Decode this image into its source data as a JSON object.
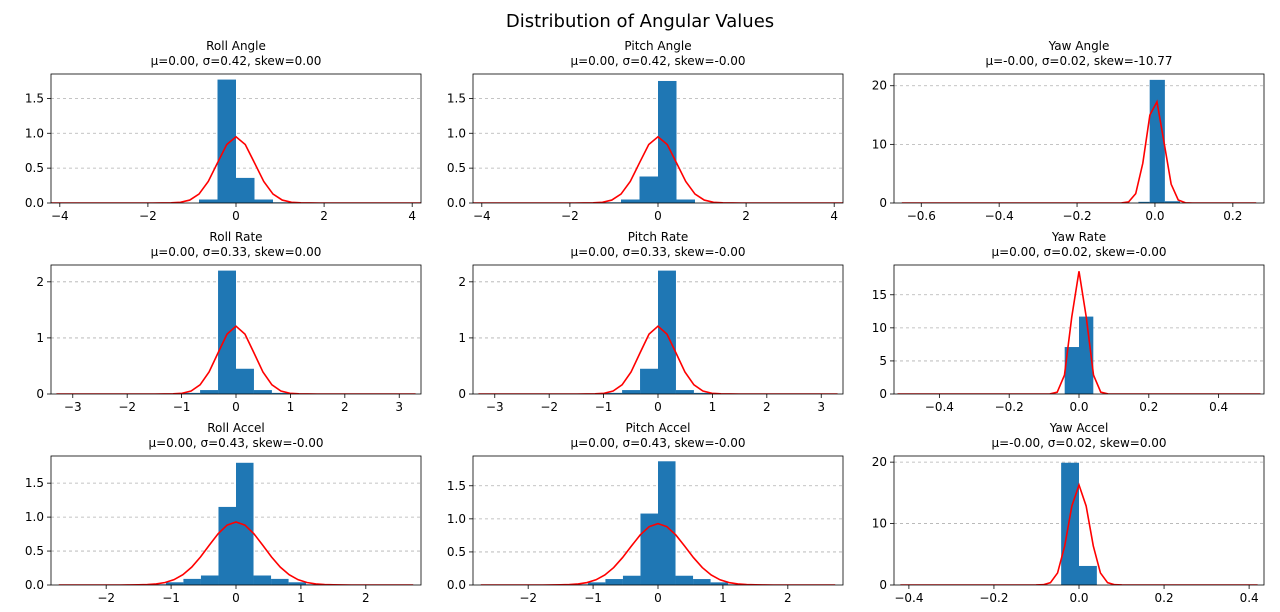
{
  "figure": {
    "title": "Distribution of Angular Values"
  },
  "colors": {
    "bar": "#1f77b4",
    "fit_curve": "#ff0000",
    "grid": "#b0b0b0",
    "axes": "#000000"
  },
  "chart_data": [
    {
      "type": "bar",
      "title": "Roll Angle",
      "subtitle": "μ=0.00, σ=0.42, skew=0.00",
      "xlim": [
        -4.2,
        4.2
      ],
      "ylim": [
        0,
        1.85
      ],
      "grid": "y",
      "legend": "none",
      "xticks": [
        -4,
        -2,
        0,
        2,
        4
      ],
      "xtick_labels": [
        "−4",
        "−2",
        "0",
        "2",
        "4"
      ],
      "yticks": [
        0,
        0.5,
        1,
        1.5
      ],
      "ytick_labels": [
        "0.0",
        "0.5",
        "1.0",
        "1.5"
      ],
      "bins": [
        {
          "x0": -0.84,
          "x1": -0.42,
          "y": 0.05
        },
        {
          "x0": -0.42,
          "x1": 0.0,
          "y": 1.77
        },
        {
          "x0": 0.0,
          "x1": 0.42,
          "y": 0.36
        },
        {
          "x0": 0.42,
          "x1": 0.84,
          "y": 0.05
        },
        {
          "x0": 0.84,
          "x1": 1.26,
          "y": 0.01
        }
      ],
      "curve": {
        "type": "normal",
        "mu": 0.0,
        "sigma": 0.42,
        "x_range": [
          -4.2,
          4.2
        ],
        "samples": 41
      }
    },
    {
      "type": "bar",
      "title": "Pitch Angle",
      "subtitle": "μ=0.00, σ=0.42, skew=-0.00",
      "xlim": [
        -4.2,
        4.2
      ],
      "ylim": [
        0,
        1.85
      ],
      "grid": "y",
      "legend": "none",
      "xticks": [
        -4,
        -2,
        0,
        2,
        4
      ],
      "xtick_labels": [
        "−4",
        "−2",
        "0",
        "2",
        "4"
      ],
      "yticks": [
        0,
        0.5,
        1,
        1.5
      ],
      "ytick_labels": [
        "0.0",
        "0.5",
        "1.0",
        "1.5"
      ],
      "bins": [
        {
          "x0": -1.26,
          "x1": -0.84,
          "y": 0.01
        },
        {
          "x0": -0.84,
          "x1": -0.42,
          "y": 0.05
        },
        {
          "x0": -0.42,
          "x1": 0.0,
          "y": 0.38
        },
        {
          "x0": 0.0,
          "x1": 0.42,
          "y": 1.75
        },
        {
          "x0": 0.42,
          "x1": 0.84,
          "y": 0.05
        }
      ],
      "curve": {
        "type": "normal",
        "mu": 0.0,
        "sigma": 0.42,
        "x_range": [
          -4.2,
          4.2
        ],
        "samples": 41
      }
    },
    {
      "type": "bar",
      "title": "Yaw Angle",
      "subtitle": "μ=-0.00, σ=0.02, skew=-10.77",
      "xlim": [
        -0.67,
        0.28
      ],
      "ylim": [
        0,
        22
      ],
      "grid": "y",
      "legend": "none",
      "xticks": [
        -0.6,
        -0.4,
        -0.2,
        0.0,
        0.2
      ],
      "xtick_labels": [
        "−0.6",
        "−0.4",
        "−0.2",
        "0.0",
        "0.2"
      ],
      "yticks": [
        0,
        10,
        20
      ],
      "ytick_labels": [
        "0",
        "10",
        "20"
      ],
      "bins": [
        {
          "x0": -0.0425,
          "x1": -0.0135,
          "y": 0.2
        },
        {
          "x0": -0.0135,
          "x1": 0.0255,
          "y": 21.0
        },
        {
          "x0": 0.0255,
          "x1": 0.0645,
          "y": 0.3
        }
      ],
      "curve": {
        "type": "normal",
        "mu": 0.0,
        "sigma": 0.0225,
        "x_range": [
          -0.65,
          0.26
        ],
        "samples": 51
      }
    },
    {
      "type": "bar",
      "title": "Roll Rate",
      "subtitle": "μ=0.00, σ=0.33, skew=0.00",
      "xlim": [
        -3.4,
        3.4
      ],
      "ylim": [
        0,
        2.3
      ],
      "grid": "y",
      "legend": "none",
      "xticks": [
        -3,
        -2,
        -1,
        0,
        1,
        2,
        3
      ],
      "xtick_labels": [
        "−3",
        "−2",
        "−1",
        "0",
        "1",
        "2",
        "3"
      ],
      "yticks": [
        0,
        1,
        2
      ],
      "ytick_labels": [
        "0",
        "1",
        "2"
      ],
      "bins": [
        {
          "x0": -1.0,
          "x1": -0.66,
          "y": 0.02
        },
        {
          "x0": -0.66,
          "x1": -0.33,
          "y": 0.07
        },
        {
          "x0": -0.33,
          "x1": 0.0,
          "y": 2.2
        },
        {
          "x0": 0.0,
          "x1": 0.33,
          "y": 0.45
        },
        {
          "x0": 0.33,
          "x1": 0.66,
          "y": 0.07
        },
        {
          "x0": 0.66,
          "x1": 1.0,
          "y": 0.02
        }
      ],
      "curve": {
        "type": "normal",
        "mu": 0.0,
        "sigma": 0.33,
        "x_range": [
          -3.3,
          3.3
        ],
        "samples": 41
      }
    },
    {
      "type": "bar",
      "title": "Pitch Rate",
      "subtitle": "μ=0.00, σ=0.33, skew=-0.00",
      "xlim": [
        -3.4,
        3.4
      ],
      "ylim": [
        0,
        2.3
      ],
      "grid": "y",
      "legend": "none",
      "xticks": [
        -3,
        -2,
        -1,
        0,
        1,
        2,
        3
      ],
      "xtick_labels": [
        "−3",
        "−2",
        "−1",
        "0",
        "1",
        "2",
        "3"
      ],
      "yticks": [
        0,
        1,
        2
      ],
      "ytick_labels": [
        "0",
        "1",
        "2"
      ],
      "bins": [
        {
          "x0": -1.0,
          "x1": -0.66,
          "y": 0.02
        },
        {
          "x0": -0.66,
          "x1": -0.33,
          "y": 0.07
        },
        {
          "x0": -0.33,
          "x1": 0.0,
          "y": 0.45
        },
        {
          "x0": 0.0,
          "x1": 0.33,
          "y": 2.2
        },
        {
          "x0": 0.33,
          "x1": 0.66,
          "y": 0.07
        },
        {
          "x0": 0.66,
          "x1": 1.0,
          "y": 0.02
        }
      ],
      "curve": {
        "type": "normal",
        "mu": 0.0,
        "sigma": 0.33,
        "x_range": [
          -3.3,
          3.3
        ],
        "samples": 41
      }
    },
    {
      "type": "bar",
      "title": "Yaw Rate",
      "subtitle": "μ=0.00, σ=0.02, skew=-0.00",
      "xlim": [
        -0.53,
        0.53
      ],
      "ylim": [
        0,
        19.5
      ],
      "grid": "y",
      "legend": "none",
      "xticks": [
        -0.4,
        -0.2,
        0.0,
        0.2,
        0.4
      ],
      "xtick_labels": [
        "−0.4",
        "−0.2",
        "0.0",
        "0.2",
        "0.4"
      ],
      "yticks": [
        0,
        5,
        10,
        15
      ],
      "ytick_labels": [
        "0",
        "5",
        "10",
        "15"
      ],
      "bins": [
        {
          "x0": -0.041,
          "x1": 0.0,
          "y": 7.1
        },
        {
          "x0": 0.0,
          "x1": 0.041,
          "y": 11.7
        }
      ],
      "curve": {
        "type": "normal",
        "mu": 0.0,
        "sigma": 0.0215,
        "x_range": [
          -0.52,
          0.52
        ],
        "samples": 51
      }
    },
    {
      "type": "bar",
      "title": "Roll Accel",
      "subtitle": "μ=0.00, σ=0.43, skew=-0.00",
      "xlim": [
        -2.85,
        2.85
      ],
      "ylim": [
        0,
        1.9
      ],
      "grid": "y",
      "legend": "none",
      "xticks": [
        -2,
        -1,
        0,
        1,
        2
      ],
      "xtick_labels": [
        "−2",
        "−1",
        "0",
        "1",
        "2"
      ],
      "yticks": [
        0,
        0.5,
        1,
        1.5
      ],
      "ytick_labels": [
        "0.0",
        "0.5",
        "1.0",
        "1.5"
      ],
      "bins": [
        {
          "x0": -1.35,
          "x1": -1.08,
          "y": 0.01
        },
        {
          "x0": -1.08,
          "x1": -0.81,
          "y": 0.04
        },
        {
          "x0": -0.81,
          "x1": -0.54,
          "y": 0.09
        },
        {
          "x0": -0.54,
          "x1": -0.27,
          "y": 0.14
        },
        {
          "x0": -0.27,
          "x1": 0.0,
          "y": 1.15
        },
        {
          "x0": 0.0,
          "x1": 0.27,
          "y": 1.8
        },
        {
          "x0": 0.27,
          "x1": 0.54,
          "y": 0.14
        },
        {
          "x0": 0.54,
          "x1": 0.81,
          "y": 0.09
        },
        {
          "x0": 0.81,
          "x1": 1.08,
          "y": 0.04
        },
        {
          "x0": 1.08,
          "x1": 1.35,
          "y": 0.01
        }
      ],
      "curve": {
        "type": "normal",
        "mu": 0.0,
        "sigma": 0.43,
        "x_range": [
          -2.73,
          2.73
        ],
        "samples": 41
      }
    },
    {
      "type": "bar",
      "title": "Pitch Accel",
      "subtitle": "μ=0.00, σ=0.43, skew=-0.00",
      "xlim": [
        -2.85,
        2.85
      ],
      "ylim": [
        0,
        1.95
      ],
      "grid": "y",
      "legend": "none",
      "xticks": [
        -2,
        -1,
        0,
        1,
        2
      ],
      "xtick_labels": [
        "−2",
        "−1",
        "0",
        "1",
        "2"
      ],
      "yticks": [
        0,
        0.5,
        1,
        1.5
      ],
      "ytick_labels": [
        "0.0",
        "0.5",
        "1.0",
        "1.5"
      ],
      "bins": [
        {
          "x0": -1.35,
          "x1": -1.08,
          "y": 0.01
        },
        {
          "x0": -1.08,
          "x1": -0.81,
          "y": 0.04
        },
        {
          "x0": -0.81,
          "x1": -0.54,
          "y": 0.09
        },
        {
          "x0": -0.54,
          "x1": -0.27,
          "y": 0.14
        },
        {
          "x0": -0.27,
          "x1": 0.0,
          "y": 1.08
        },
        {
          "x0": 0.0,
          "x1": 0.27,
          "y": 1.87
        },
        {
          "x0": 0.27,
          "x1": 0.54,
          "y": 0.14
        },
        {
          "x0": 0.54,
          "x1": 0.81,
          "y": 0.09
        },
        {
          "x0": 0.81,
          "x1": 1.08,
          "y": 0.04
        },
        {
          "x0": 1.08,
          "x1": 1.35,
          "y": 0.01
        }
      ],
      "curve": {
        "type": "normal",
        "mu": 0.0,
        "sigma": 0.43,
        "x_range": [
          -2.73,
          2.73
        ],
        "samples": 41
      }
    },
    {
      "type": "bar",
      "title": "Yaw Accel",
      "subtitle": "μ=-0.00, σ=0.02, skew=0.00",
      "xlim": [
        -0.435,
        0.435
      ],
      "ylim": [
        0,
        21
      ],
      "grid": "y",
      "legend": "none",
      "xticks": [
        -0.4,
        -0.2,
        0.0,
        0.2,
        0.4
      ],
      "xtick_labels": [
        "−0.4",
        "−0.2",
        "0.0",
        "0.2",
        "0.4"
      ],
      "yticks": [
        0,
        10,
        20
      ],
      "ytick_labels": [
        "0",
        "10",
        "20"
      ],
      "bins": [
        {
          "x0": -0.042,
          "x1": 0.0,
          "y": 19.9
        },
        {
          "x0": 0.0,
          "x1": 0.042,
          "y": 3.1
        }
      ],
      "curve": {
        "type": "normal",
        "mu": 0.0,
        "sigma": 0.0245,
        "x_range": [
          -0.42,
          0.42
        ],
        "samples": 51
      }
    }
  ]
}
